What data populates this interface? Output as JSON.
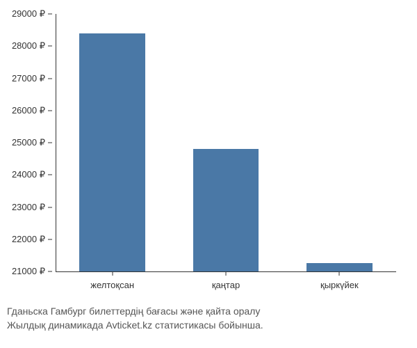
{
  "chart": {
    "type": "bar",
    "categories": [
      "желтоқсан",
      "қаңтар",
      "қыркүйек"
    ],
    "values": [
      28400,
      24800,
      21250
    ],
    "bar_color": "#4a78a6",
    "background_color": "#ffffff",
    "axis_color": "#333333",
    "y_axis": {
      "min": 21000,
      "max": 29000,
      "step": 1000,
      "currency_symbol": "₽",
      "ticks": [
        21000,
        22000,
        23000,
        24000,
        25000,
        26000,
        27000,
        28000,
        29000
      ],
      "tick_labels": [
        "21000 ₽",
        "22000 ₽",
        "23000 ₽",
        "24000 ₽",
        "25000 ₽",
        "26000 ₽",
        "27000 ₽",
        "28000 ₽",
        "29000 ₽"
      ]
    },
    "bar_width_ratio": 0.58,
    "tick_fontsize": 13,
    "caption_fontsize": 14,
    "caption_color": "#555555"
  },
  "caption": {
    "line1": "Гданьска Гамбург билеттердің бағасы және қайта оралу",
    "line2": "Жылдық динамикада Avticket.kz статистикасы бойынша."
  }
}
